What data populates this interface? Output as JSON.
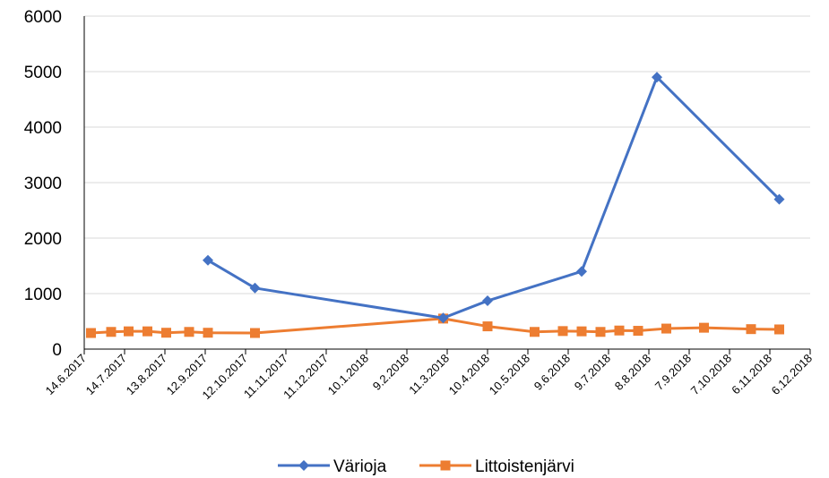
{
  "chart_data": {
    "type": "line",
    "title": "",
    "xlabel": "",
    "ylabel": "",
    "ylim": [
      0,
      6000
    ],
    "yticks": [
      0,
      1000,
      2000,
      3000,
      4000,
      5000,
      6000
    ],
    "xlim": [
      "2017-06-14",
      "2018-12-06"
    ],
    "x_tick_labels": [
      "14.6.2017",
      "14.7.2017",
      "13.8.2017",
      "12.9.2017",
      "12.10.2017",
      "11.11.2017",
      "11.12.2017",
      "10.1.2018",
      "9.2.2018",
      "11.3.2018",
      "10.4.2018",
      "10.5.2018",
      "9.6.2018",
      "9.7.2018",
      "8.8.2018",
      "7.9.2018",
      "7.10.2018",
      "6.11.2018",
      "6.12.2018"
    ],
    "x_tick_dates": [
      "2017-06-14",
      "2017-07-14",
      "2017-08-13",
      "2017-09-12",
      "2017-10-12",
      "2017-11-11",
      "2017-12-11",
      "2018-01-10",
      "2018-02-09",
      "2018-03-11",
      "2018-04-10",
      "2018-05-10",
      "2018-06-09",
      "2018-07-09",
      "2018-08-08",
      "2018-09-07",
      "2018-10-07",
      "2018-11-06",
      "2018-12-06"
    ],
    "grid": "horizontal",
    "legend": "bottom",
    "series": [
      {
        "name": "Värioja",
        "color": "#4472C4",
        "marker": "diamond",
        "points": [
          {
            "x": "2017-09-14",
            "y": 1600
          },
          {
            "x": "2017-10-19",
            "y": 1100
          },
          {
            "x": "2018-03-08",
            "y": 560
          },
          {
            "x": "2018-04-10",
            "y": 870
          },
          {
            "x": "2018-06-19",
            "y": 1400
          },
          {
            "x": "2018-08-14",
            "y": 4900
          },
          {
            "x": "2018-11-13",
            "y": 2700
          }
        ]
      },
      {
        "name": "Littoistenjärvi",
        "color": "#ED7D31",
        "marker": "square",
        "points": [
          {
            "x": "2017-06-19",
            "y": 290
          },
          {
            "x": "2017-07-04",
            "y": 310
          },
          {
            "x": "2017-07-17",
            "y": 320
          },
          {
            "x": "2017-07-31",
            "y": 320
          },
          {
            "x": "2017-08-14",
            "y": 295
          },
          {
            "x": "2017-08-31",
            "y": 310
          },
          {
            "x": "2017-09-14",
            "y": 295
          },
          {
            "x": "2017-10-19",
            "y": 290
          },
          {
            "x": "2018-03-08",
            "y": 550
          },
          {
            "x": "2018-04-10",
            "y": 410
          },
          {
            "x": "2018-05-15",
            "y": 310
          },
          {
            "x": "2018-06-05",
            "y": 325
          },
          {
            "x": "2018-06-19",
            "y": 320
          },
          {
            "x": "2018-07-03",
            "y": 310
          },
          {
            "x": "2018-07-17",
            "y": 335
          },
          {
            "x": "2018-07-31",
            "y": 330
          },
          {
            "x": "2018-08-21",
            "y": 370
          },
          {
            "x": "2018-09-18",
            "y": 385
          },
          {
            "x": "2018-10-23",
            "y": 360
          },
          {
            "x": "2018-11-13",
            "y": 355
          }
        ]
      }
    ]
  }
}
